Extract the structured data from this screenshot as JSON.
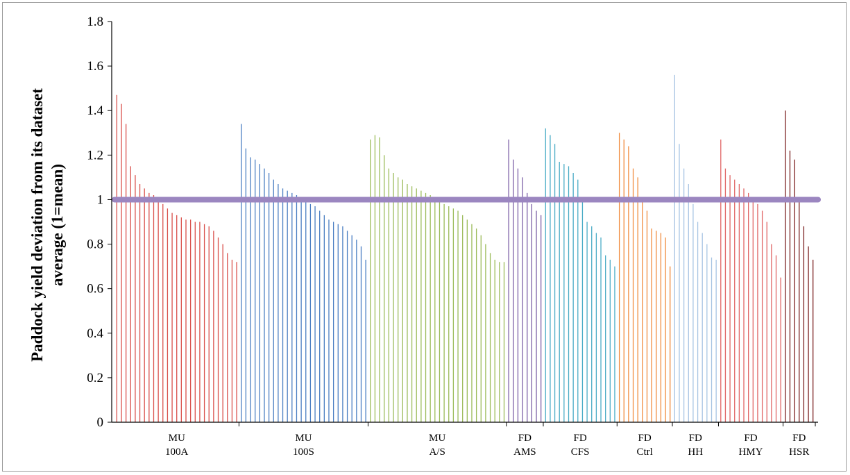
{
  "chart_data": {
    "type": "bar",
    "ylabel_line1": "Paddock yield deviation from its dataset",
    "ylabel_line2": "average (1=mean)",
    "xlabel": "",
    "ylim": [
      0,
      1.8
    ],
    "yticks": [
      "0",
      "0.2",
      "0.4",
      "0.6",
      "0.8",
      "1",
      "1.2",
      "1.4",
      "1.6",
      "1.8"
    ],
    "reference_line": {
      "value": 1,
      "color": "#9b86c0"
    },
    "groups": [
      {
        "label1": "MU",
        "label2": "100A",
        "color": "#d9504b",
        "values": [
          1.47,
          1.43,
          1.34,
          1.15,
          1.11,
          1.07,
          1.05,
          1.03,
          1.02,
          1.0,
          0.98,
          0.96,
          0.94,
          0.93,
          0.92,
          0.91,
          0.91,
          0.9,
          0.9,
          0.89,
          0.88,
          0.86,
          0.83,
          0.8,
          0.76,
          0.73,
          0.72
        ]
      },
      {
        "label1": "MU",
        "label2": "100S",
        "color": "#4a7ec2",
        "values": [
          1.34,
          1.23,
          1.19,
          1.18,
          1.16,
          1.14,
          1.12,
          1.09,
          1.07,
          1.05,
          1.04,
          1.03,
          1.02,
          1.0,
          0.99,
          0.98,
          0.97,
          0.95,
          0.93,
          0.91,
          0.9,
          0.89,
          0.88,
          0.86,
          0.84,
          0.82,
          0.79,
          0.73
        ]
      },
      {
        "label1": "MU",
        "label2": "A/S",
        "color": "#9bbb59",
        "values": [
          1.27,
          1.29,
          1.28,
          1.2,
          1.14,
          1.12,
          1.1,
          1.09,
          1.07,
          1.06,
          1.05,
          1.04,
          1.03,
          1.02,
          1.0,
          0.99,
          0.98,
          0.97,
          0.96,
          0.95,
          0.93,
          0.91,
          0.89,
          0.87,
          0.84,
          0.8,
          0.76,
          0.73,
          0.72,
          0.72
        ]
      },
      {
        "label1": "FD",
        "label2": "AMS",
        "color": "#7b5fa6",
        "values": [
          1.27,
          1.18,
          1.14,
          1.1,
          1.03,
          0.98,
          0.95,
          0.93
        ]
      },
      {
        "label1": "FD",
        "label2": "CFS",
        "color": "#4bacc6",
        "values": [
          1.32,
          1.29,
          1.25,
          1.17,
          1.16,
          1.15,
          1.12,
          1.09,
          1.0,
          0.9,
          0.88,
          0.85,
          0.83,
          0.75,
          0.73,
          0.7
        ]
      },
      {
        "label1": "FD",
        "label2": "Ctrl",
        "color": "#f08a3c",
        "values": [
          1.3,
          1.27,
          1.24,
          1.14,
          1.1,
          1.0,
          0.95,
          0.87,
          0.86,
          0.85,
          0.83,
          0.7
        ]
      },
      {
        "label1": "FD",
        "label2": "HH",
        "color": "#a7c4e3",
        "values": [
          1.56,
          1.25,
          1.14,
          1.07,
          0.98,
          0.9,
          0.85,
          0.8,
          0.74,
          0.73
        ]
      },
      {
        "label1": "FD",
        "label2": "HMY",
        "color": "#e06666",
        "values": [
          1.27,
          1.14,
          1.11,
          1.09,
          1.07,
          1.05,
          1.03,
          1.0,
          0.98,
          0.95,
          0.9,
          0.8,
          0.75,
          0.65
        ]
      },
      {
        "label1": "FD",
        "label2": "HSR",
        "color": "#7a1f1f",
        "values": [
          1.4,
          1.22,
          1.18,
          1.0,
          0.88,
          0.79,
          0.73
        ]
      }
    ]
  }
}
